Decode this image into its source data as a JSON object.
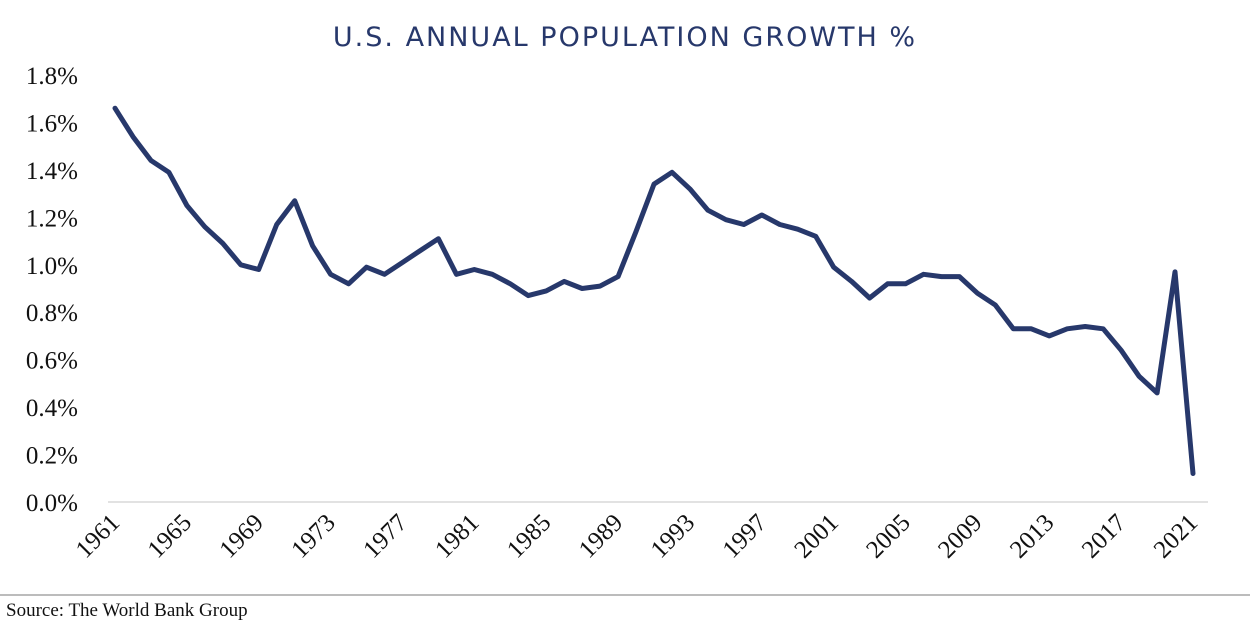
{
  "chart_data": {
    "type": "line",
    "title": "U.S. ANNUAL POPULATION GROWTH %",
    "xlabel": "",
    "ylabel": "",
    "x_range": [
      1961,
      2021
    ],
    "ylim": [
      0,
      1.8
    ],
    "y_ticks": [
      "0.0%",
      "0.2%",
      "0.4%",
      "0.6%",
      "0.8%",
      "1.0%",
      "1.2%",
      "1.4%",
      "1.6%",
      "1.8%"
    ],
    "x_ticks": [
      "1961",
      "1965",
      "1969",
      "1973",
      "1977",
      "1981",
      "1985",
      "1989",
      "1993",
      "1997",
      "2001",
      "2005",
      "2009",
      "2013",
      "2017",
      "2021"
    ],
    "series": [
      {
        "color": "#27386b",
        "x": [
          1961,
          1962,
          1963,
          1964,
          1965,
          1966,
          1967,
          1968,
          1969,
          1970,
          1971,
          1972,
          1973,
          1974,
          1975,
          1976,
          1977,
          1978,
          1979,
          1980,
          1981,
          1982,
          1983,
          1984,
          1985,
          1986,
          1987,
          1988,
          1989,
          1990,
          1991,
          1992,
          1993,
          1994,
          1995,
          1996,
          1997,
          1998,
          1999,
          2000,
          2001,
          2002,
          2003,
          2004,
          2005,
          2006,
          2007,
          2008,
          2009,
          2010,
          2011,
          2012,
          2013,
          2014,
          2015,
          2016,
          2017,
          2018,
          2019,
          2020,
          2021
        ],
        "values": [
          1.66,
          1.54,
          1.44,
          1.39,
          1.25,
          1.16,
          1.09,
          1.0,
          0.98,
          1.17,
          1.27,
          1.08,
          0.96,
          0.92,
          0.99,
          0.96,
          1.01,
          1.06,
          1.11,
          0.96,
          0.98,
          0.96,
          0.92,
          0.87,
          0.89,
          0.93,
          0.9,
          0.91,
          0.95,
          1.14,
          1.34,
          1.39,
          1.32,
          1.23,
          1.19,
          1.17,
          1.21,
          1.17,
          1.15,
          1.12,
          0.99,
          0.93,
          0.86,
          0.92,
          0.92,
          0.96,
          0.95,
          0.95,
          0.88,
          0.83,
          0.73,
          0.73,
          0.7,
          0.73,
          0.74,
          0.73,
          0.64,
          0.53,
          0.46,
          0.97,
          0.12
        ]
      }
    ]
  },
  "footer": {
    "source": "Source: The World Bank Group"
  }
}
